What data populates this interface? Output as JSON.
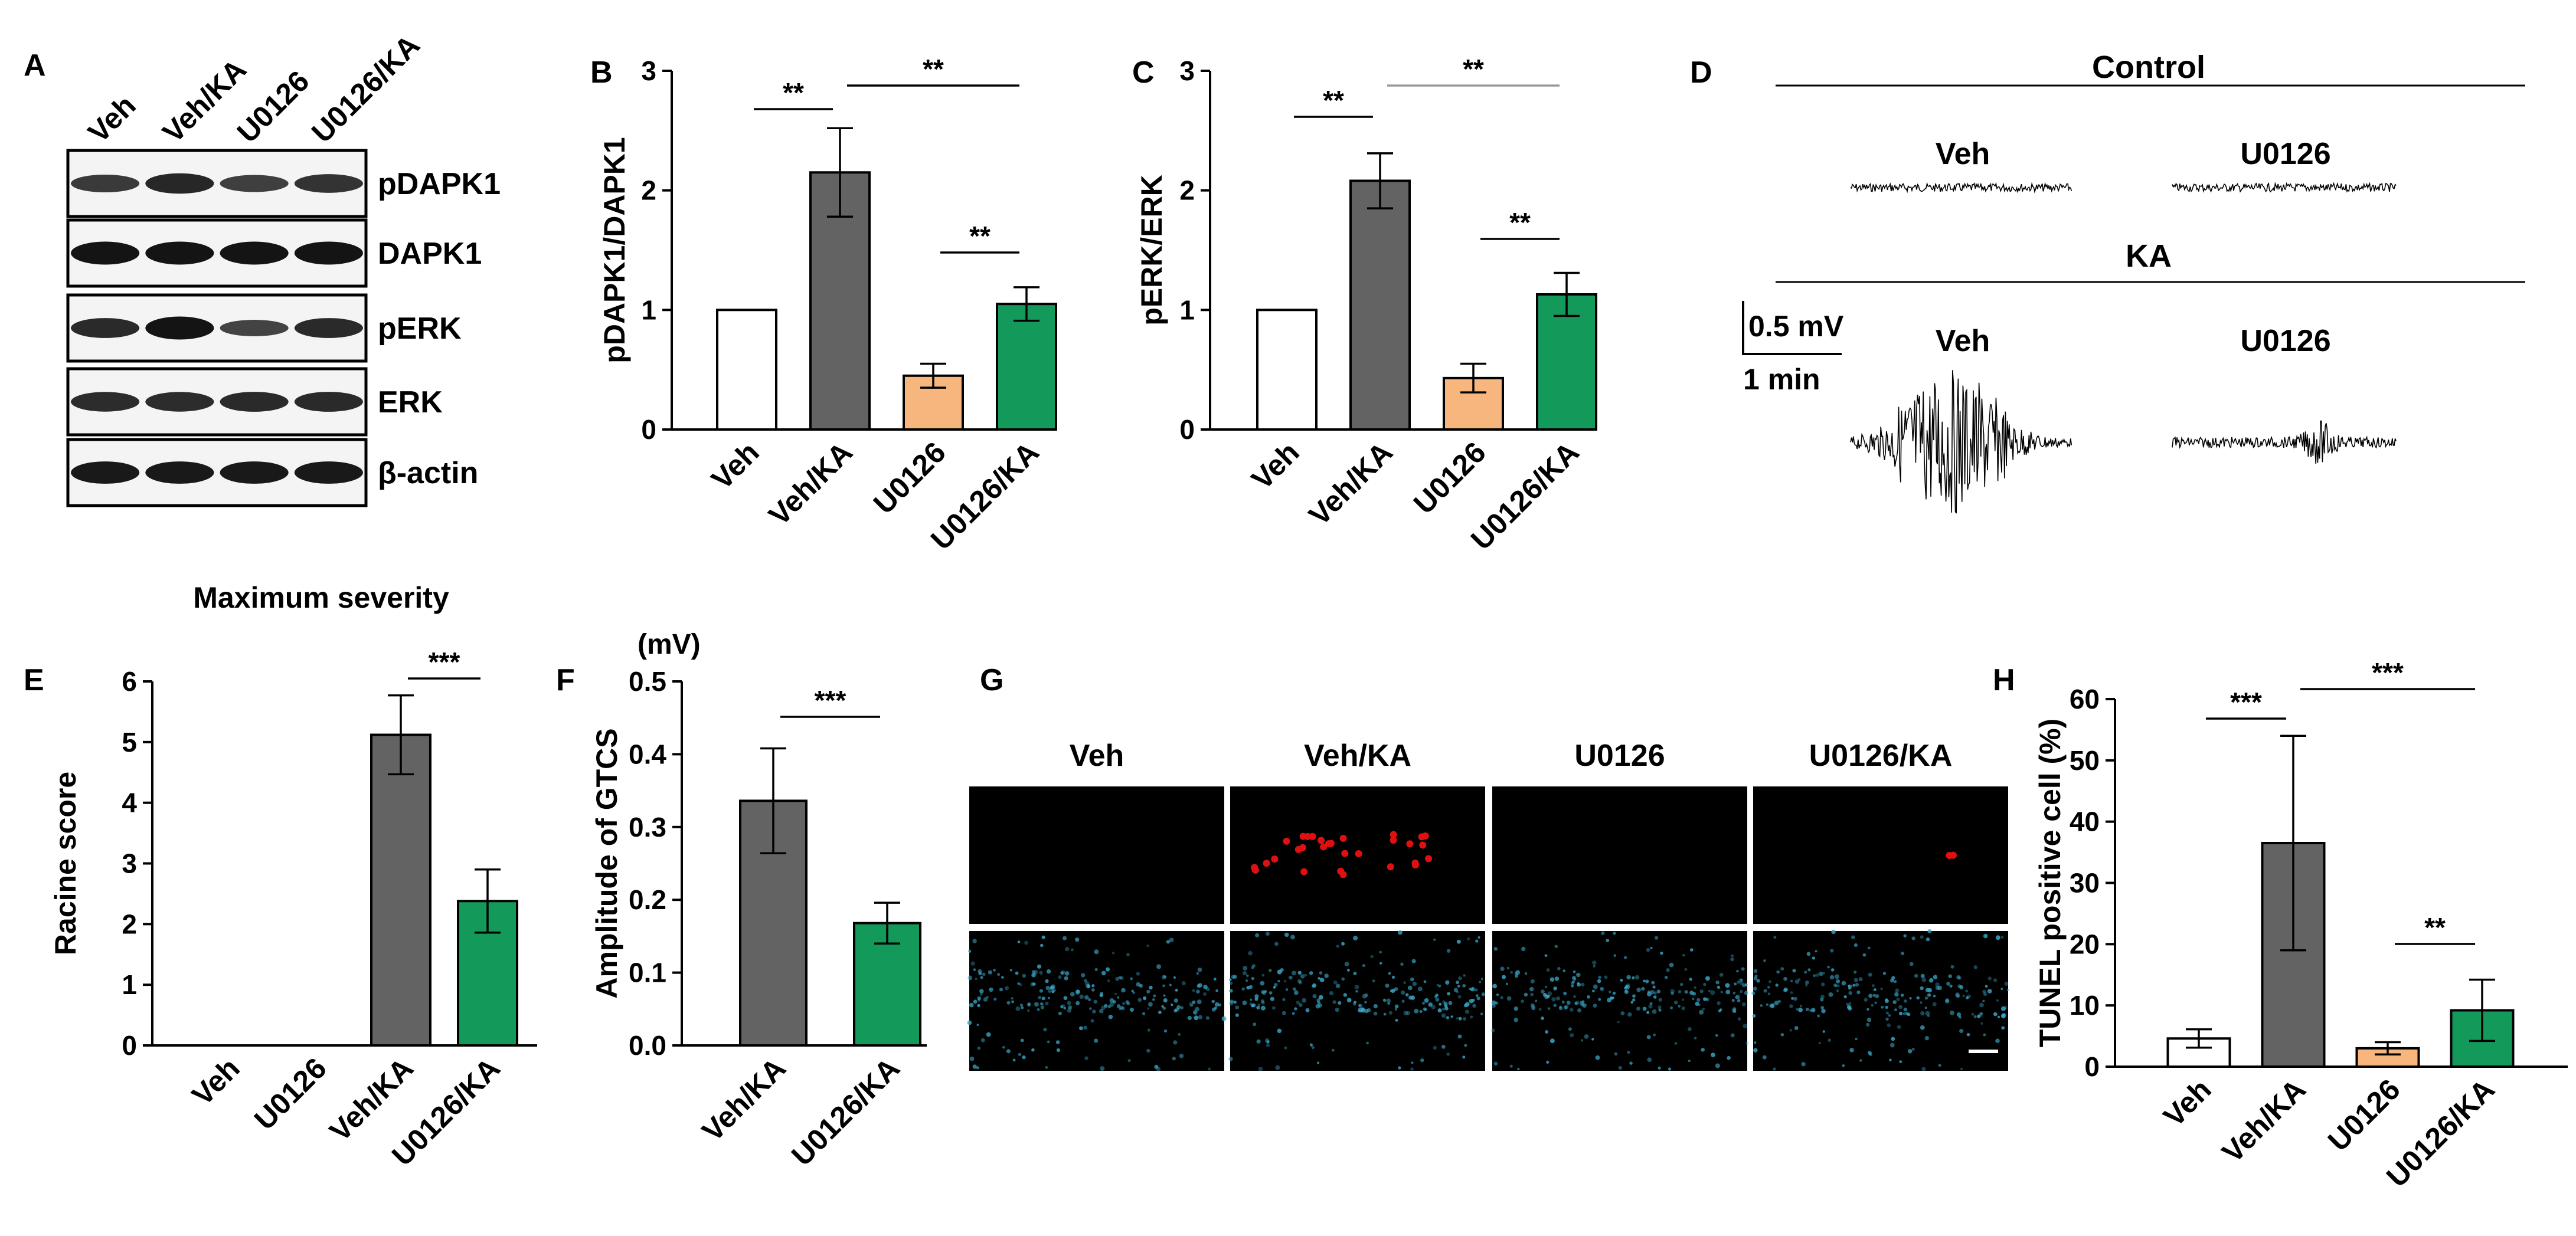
{
  "panel_letters": {
    "A": "A",
    "B": "B",
    "C": "C",
    "D": "D",
    "E": "E",
    "F": "F",
    "G": "G",
    "H": "H"
  },
  "colors": {
    "veh": "#ffffff",
    "veh_ka": "#636363",
    "u0126": "#f8b67f",
    "u0126_ka": "#13995a",
    "axis": "#000000",
    "tunel_bg": "#000000",
    "tunel_cells": "#e01010",
    "dapi_cells": "#3aa7c8"
  },
  "blot": {
    "lanes": [
      "Veh",
      "Veh/KA",
      "U0126",
      "U0126/KA"
    ],
    "proteins": [
      "pDAPK1",
      "DAPK1",
      "pERK",
      "ERK",
      "β-actin"
    ],
    "band_intensity": [
      [
        0.55,
        0.75,
        0.5,
        0.62
      ],
      [
        0.95,
        0.95,
        0.95,
        0.95
      ],
      [
        0.72,
        0.95,
        0.45,
        0.72
      ],
      [
        0.7,
        0.7,
        0.72,
        0.72
      ],
      [
        0.9,
        0.9,
        0.9,
        0.9
      ]
    ]
  },
  "eeg": {
    "control_label": "Control",
    "ka_label": "KA",
    "trace_labels": {
      "veh_control": "Veh",
      "u0126_control": "U0126",
      "veh_ka": "Veh",
      "u0126_ka": "U0126"
    },
    "scale_bar": {
      "voltage": "0.5 mV",
      "time": "1 min"
    }
  },
  "chart_data": [
    {
      "panel": "B",
      "type": "bar",
      "categories": [
        "Veh",
        "Veh/KA",
        "U0126",
        "U0126/KA"
      ],
      "values": [
        1.0,
        2.15,
        0.45,
        1.05
      ],
      "errors": [
        0,
        0.37,
        0.1,
        0.14
      ],
      "ylabel": "pDAPK1/DAPK1",
      "ylim": [
        0,
        3
      ],
      "yticks": [
        0,
        1,
        2,
        3
      ],
      "significance": [
        {
          "from": 0,
          "to": 1,
          "label": "**"
        },
        {
          "from": 1,
          "to": 3,
          "label": "**"
        },
        {
          "from": 2,
          "to": 3,
          "label": "**"
        }
      ]
    },
    {
      "panel": "C",
      "type": "bar",
      "categories": [
        "Veh",
        "Veh/KA",
        "U0126",
        "U0126/KA"
      ],
      "values": [
        1.0,
        2.08,
        0.43,
        1.13
      ],
      "errors": [
        0,
        0.23,
        0.12,
        0.18
      ],
      "ylabel": "pERK/ERK",
      "ylim": [
        0,
        3
      ],
      "yticks": [
        0,
        1,
        2,
        3
      ],
      "significance": [
        {
          "from": 0,
          "to": 1,
          "label": "**"
        },
        {
          "from": 1,
          "to": 3,
          "label": "**"
        },
        {
          "from": 2,
          "to": 3,
          "label": "**"
        }
      ]
    },
    {
      "panel": "E",
      "type": "bar",
      "title": "Maximum severity",
      "categories": [
        "Veh",
        "U0126",
        "Veh/KA",
        "U0126/KA"
      ],
      "values": [
        0,
        0,
        5.12,
        2.38
      ],
      "errors": [
        0,
        0,
        0.65,
        0.52
      ],
      "ylabel": "Racine score",
      "ylim": [
        0,
        6
      ],
      "yticks": [
        0,
        1,
        2,
        3,
        4,
        5,
        6
      ],
      "significance": [
        {
          "from": 2,
          "to": 3,
          "label": "***"
        }
      ]
    },
    {
      "panel": "F",
      "type": "bar",
      "categories": [
        "Veh/KA",
        "U0126/KA"
      ],
      "values": [
        0.336,
        0.168
      ],
      "errors": [
        0.072,
        0.028
      ],
      "ylabel": "Amplitude of  GTCS",
      "yunit": "(mV)",
      "ylim": [
        0,
        0.5
      ],
      "yticks": [
        0.0,
        0.1,
        0.2,
        0.3,
        0.4,
        0.5
      ],
      "significance": [
        {
          "from": 0,
          "to": 1,
          "label": "***"
        }
      ]
    },
    {
      "panel": "H",
      "type": "bar",
      "categories": [
        "Veh",
        "Veh/KA",
        "U0126",
        "U0126/KA"
      ],
      "values": [
        4.6,
        36.5,
        3.0,
        9.2
      ],
      "errors": [
        1.5,
        17.5,
        1.0,
        5.0
      ],
      "ylabel": "TUNEL positive cell (%)",
      "ylim": [
        0,
        60
      ],
      "yticks": [
        0,
        10,
        20,
        30,
        40,
        50,
        60
      ],
      "significance": [
        {
          "from": 0,
          "to": 1,
          "label": "***"
        },
        {
          "from": 1,
          "to": 3,
          "label": "***"
        },
        {
          "from": 2,
          "to": 3,
          "label": "**"
        }
      ]
    }
  ],
  "micrographs": {
    "columns": [
      "Veh",
      "Veh/KA",
      "U0126",
      "U0126/KA"
    ],
    "tunel_positive_counts": [
      0,
      30,
      0,
      2
    ]
  }
}
